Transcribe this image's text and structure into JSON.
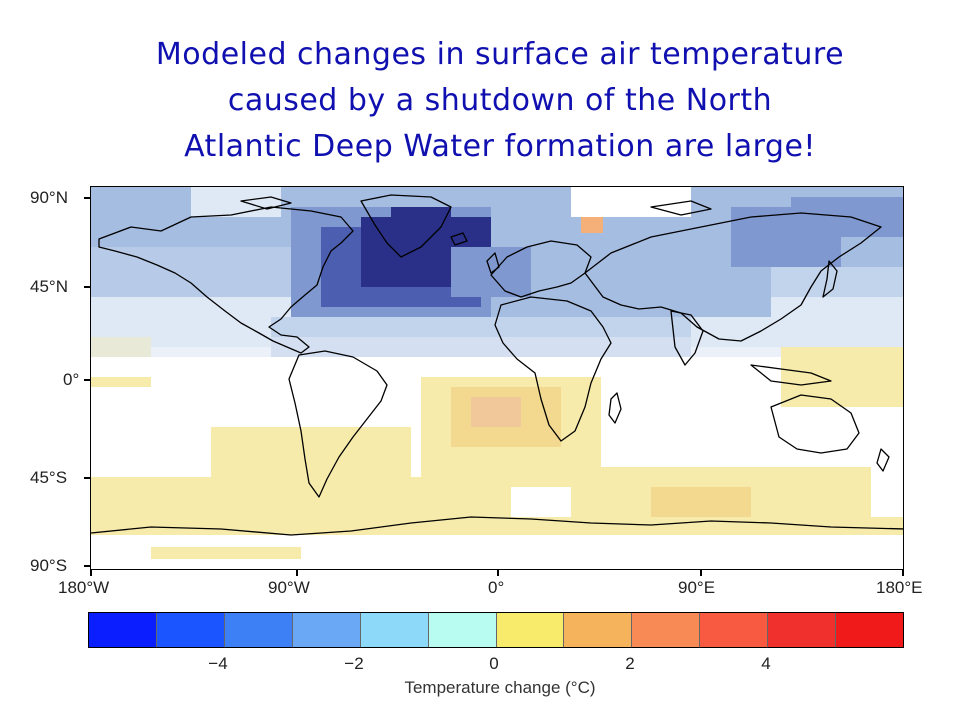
{
  "title": {
    "line1": "Modeled changes in surface air temperature",
    "line2": "caused by a shutdown of the North",
    "line3": "Atlantic Deep Water formation are large!"
  },
  "map": {
    "lat_labels": [
      "90°N",
      "45°N",
      "0°",
      "45°S",
      "90°S"
    ],
    "lon_labels": [
      "180°W",
      "90°W",
      "0°",
      "90°E",
      "180°E"
    ],
    "colors": {
      "ocean_white": "#ffffff",
      "cool_1": "#dfe8f5",
      "cool_2": "#c2d3ec",
      "cool_3": "#a6bde2",
      "cool_4": "#7f98cf",
      "cool_5": "#4b5eaf",
      "cool_6": "#2a3088",
      "warm_1": "#f7ebab",
      "warm_2": "#f2d98f",
      "warm_3": "#f0c89a",
      "warm_4": "#f5b07a"
    }
  },
  "colorbar": {
    "colors": [
      "#0a1eff",
      "#1a55ff",
      "#3d7ff5",
      "#6aa8f5",
      "#8dd9fa",
      "#b8fbf0",
      "#f8ea6b",
      "#f5b35c",
      "#f88a55",
      "#f75a40",
      "#f0302c",
      "#f01a1a"
    ],
    "tick_labels": [
      "-4",
      "-2",
      "0",
      "2",
      "4"
    ],
    "title": "Temperature change (°C)"
  }
}
